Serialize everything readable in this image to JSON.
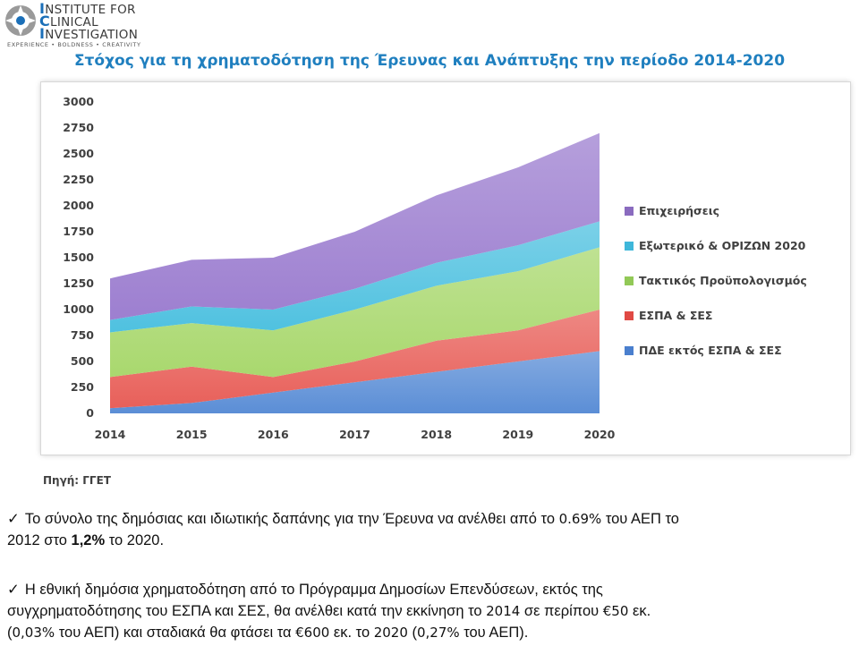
{
  "logo": {
    "line1": "NSTITUTE FOR",
    "line2": "LINICAL",
    "line3": "NVESTIGATION",
    "tagline": "EXPERIENCE • BOLDNESS • CREATIVITY",
    "initial1": "I",
    "initial2": "C",
    "initial3": "I"
  },
  "chart_data": {
    "type": "area",
    "title": "Στόχος για τη χρηματοδότηση της Έρευνας και Ανάπτυξης την περίοδο 2014-2020",
    "x": [
      "2014",
      "2015",
      "2016",
      "2017",
      "2018",
      "2019",
      "2020"
    ],
    "ylim": [
      0,
      3000
    ],
    "yticks": [
      0,
      250,
      500,
      750,
      1000,
      1250,
      1500,
      1750,
      2000,
      2250,
      2500,
      2750,
      3000
    ],
    "stacked": true,
    "legend_position": "right",
    "series": [
      {
        "name": "ΠΔΕ  εκτός ΕΣΠΑ & ΣΕΣ",
        "values": [
          50,
          100,
          200,
          300,
          400,
          500,
          600
        ],
        "color": "#5b8ed6"
      },
      {
        "name": "ΕΣΠΑ & ΣΕΣ",
        "values": [
          300,
          350,
          150,
          200,
          300,
          300,
          400
        ],
        "color": "#e8605a"
      },
      {
        "name": "Τακτικός Προϋπολογισμός",
        "values": [
          430,
          420,
          450,
          500,
          530,
          570,
          600
        ],
        "color": "#a9d86e"
      },
      {
        "name": "Εξωτερικό & ΟΡΙΖΩΝ 2020",
        "values": [
          120,
          160,
          200,
          200,
          220,
          250,
          250
        ],
        "color": "#4fc1e0"
      },
      {
        "name": "Επιχειρήσεις",
        "values": [
          400,
          450,
          500,
          550,
          650,
          750,
          850
        ],
        "color": "#9d7fd0"
      }
    ],
    "legend": [
      {
        "label": "Επιχειρήσεις",
        "color": "#8a6bbf"
      },
      {
        "label": "Εξωτερικό & ΟΡΙΖΩΝ 2020",
        "color": "#3fb7da"
      },
      {
        "label": "Τακτικός Προϋπολογισμός",
        "color": "#92c957"
      },
      {
        "label": "ΕΣΠΑ & ΣΕΣ",
        "color": "#e04a44"
      },
      {
        "label": "ΠΔΕ  εκτός ΕΣΠΑ & ΣΕΣ",
        "color": "#4a7fce"
      }
    ]
  },
  "source": "Πηγή: ΓΓΕΤ",
  "bullets": {
    "b1": {
      "check": "✓",
      "t1": "Το σύνολο της δημόσιας και ιδιωτικής δαπάνης για την Έρευνα να ανέλθει από το ",
      "n1": "0.69%",
      "t2": " του ΑΕΠ το",
      "t3": "2012 στο ",
      "bold": "1,2%",
      "t4": " το 2020."
    },
    "b2": {
      "check": "✓",
      "line1": "Η εθνική δημόσια χρηματοδότηση από το Πρόγραμμα Δημοσίων Επενδύσεων, εκτός της",
      "line2a": "συγχρηματοδότησης του ΕΣΠΑ και ΣΕΣ, θα ανέλθει κατά την εκκίνηση το ",
      "n2014": "2014",
      "line2b": " σε περίπου ",
      "n50": "€50",
      "line2c": " εκ.",
      "line3a": "(",
      "n003": "0,03%",
      "line3b": " του ΑΕΠ) και σταδιακά θα φτάσει τα ",
      "n600": "€600",
      "line3c": " εκ. το ",
      "n2020": "2020",
      "line3d": " (",
      "n027": "0,27%",
      "line3e": " του ΑΕΠ)."
    }
  }
}
